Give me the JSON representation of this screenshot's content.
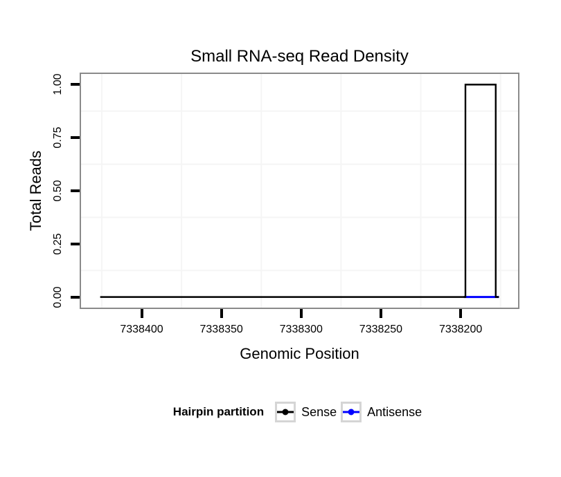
{
  "figure": {
    "title": "Small RNA-seq Read Density"
  },
  "axes": {
    "x_label": "Genomic Position",
    "y_label": "Total Reads"
  },
  "legend": {
    "title": "Hairpin partition",
    "items": [
      {
        "label": "Sense",
        "color": "#000000"
      },
      {
        "label": "Antisense",
        "color": "#0000FF"
      }
    ]
  },
  "chart_data": {
    "type": "line",
    "subtype": "step",
    "title": "Small RNA-seq Read Density",
    "xlabel": "Genomic Position",
    "ylabel": "Total Reads",
    "x_axis_reversed": true,
    "xlim": [
      7338438,
      7338164
    ],
    "ylim": [
      -0.05,
      1.05
    ],
    "x_ticks": [
      {
        "value": 7338400,
        "label": "7338400"
      },
      {
        "value": 7338350,
        "label": "7338350"
      },
      {
        "value": 7338300,
        "label": "7338300"
      },
      {
        "value": 7338250,
        "label": "7338250"
      },
      {
        "value": 7338200,
        "label": "7338200"
      }
    ],
    "y_ticks": [
      {
        "value": 0.0,
        "label": "0.00"
      },
      {
        "value": 0.25,
        "label": "0.25"
      },
      {
        "value": 0.5,
        "label": "0.50"
      },
      {
        "value": 0.75,
        "label": "0.75"
      },
      {
        "value": 1.0,
        "label": "1.00"
      }
    ],
    "minor_grid_x": [
      7338425,
      7338375,
      7338325,
      7338275,
      7338225,
      7338175
    ],
    "minor_grid_y": [
      0.125,
      0.375,
      0.625,
      0.875
    ],
    "grid": "minor-only",
    "legend_position": "bottom",
    "series": [
      {
        "name": "Sense",
        "color": "#000000",
        "stroke_width": 2.4,
        "points": [
          [
            7338426,
            0
          ],
          [
            7338197,
            0
          ],
          [
            7338197,
            1
          ],
          [
            7338178,
            1
          ],
          [
            7338178,
            0
          ],
          [
            7338176,
            0
          ]
        ]
      },
      {
        "name": "Antisense",
        "color": "#0000FF",
        "stroke_width": 3,
        "points": [
          [
            7338198,
            0
          ],
          [
            7338176,
            0
          ]
        ]
      }
    ],
    "colors": {
      "panel_border": "#8a8a8a",
      "minor_grid": "#f5f5f5",
      "tick": "#000000"
    }
  }
}
